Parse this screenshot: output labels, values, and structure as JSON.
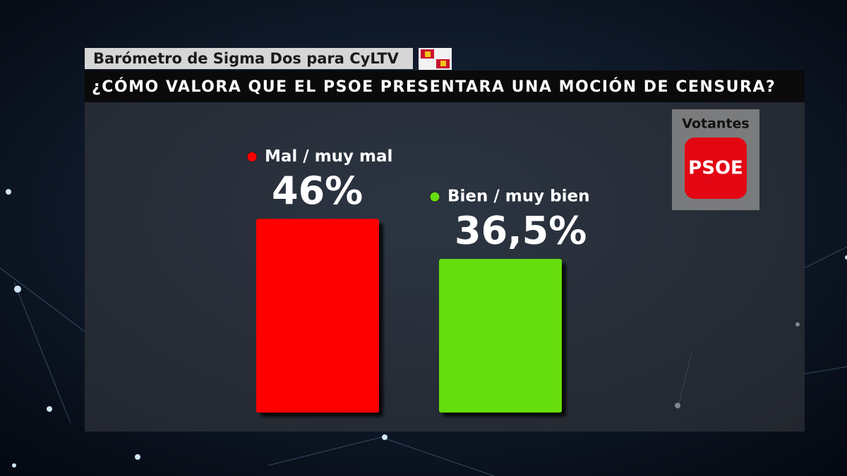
{
  "chart_data": {
    "type": "bar",
    "title": "Barómetro de Sigma Dos para CyLTV",
    "subtitle": "¿CÓMO VALORA QUE EL PSOE PRESENTARA UNA MOCIÓN DE CENSURA?",
    "categories": [
      "Mal / muy mal",
      "Bien / muy bien"
    ],
    "values": [
      46,
      36.5
    ],
    "value_labels": [
      "46%",
      "36,5%"
    ],
    "colors": [
      "#ff0000",
      "#66dd11"
    ]
  },
  "badge": {
    "label": "Votantes",
    "party": "PSOE"
  }
}
